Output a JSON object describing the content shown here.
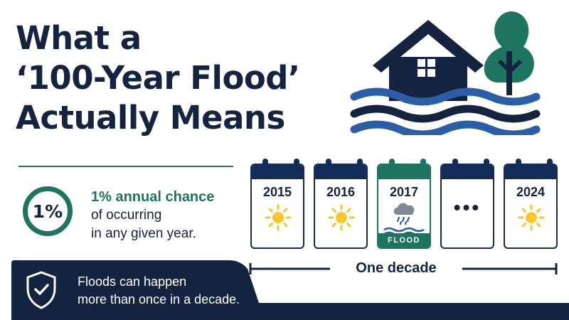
{
  "title": {
    "line1": "What a",
    "line2": "‘100-Year Flood’",
    "line3": "Actually Means"
  },
  "chance": {
    "percent": "1%",
    "headline": "1% annual chance",
    "line1": "of occurring",
    "line2": "in any given year."
  },
  "calendar": [
    {
      "year": "2015",
      "weather": "sun-icon"
    },
    {
      "year": "2016",
      "weather": "sun-icon"
    },
    {
      "year": "2017",
      "weather": "rain-cloud-icon",
      "label": "FLOOD"
    },
    {
      "dots": "•••"
    },
    {
      "year": "2024",
      "weather": "sun-icon"
    }
  ],
  "timeline": {
    "label": "One decade"
  },
  "banner": {
    "line1": "Floods can happen",
    "line2": "more than once in a decade."
  },
  "colors": {
    "navy": "#14233f",
    "calendar_navy": "#142c58",
    "green": "#1d7460",
    "wave_blue": "#2b5ea6",
    "sun": "#f6c62a"
  },
  "icons": {
    "house": "house-icon",
    "tree": "tree-icon",
    "waves": "flood-waves-icon",
    "shield": "shield-check-icon"
  }
}
